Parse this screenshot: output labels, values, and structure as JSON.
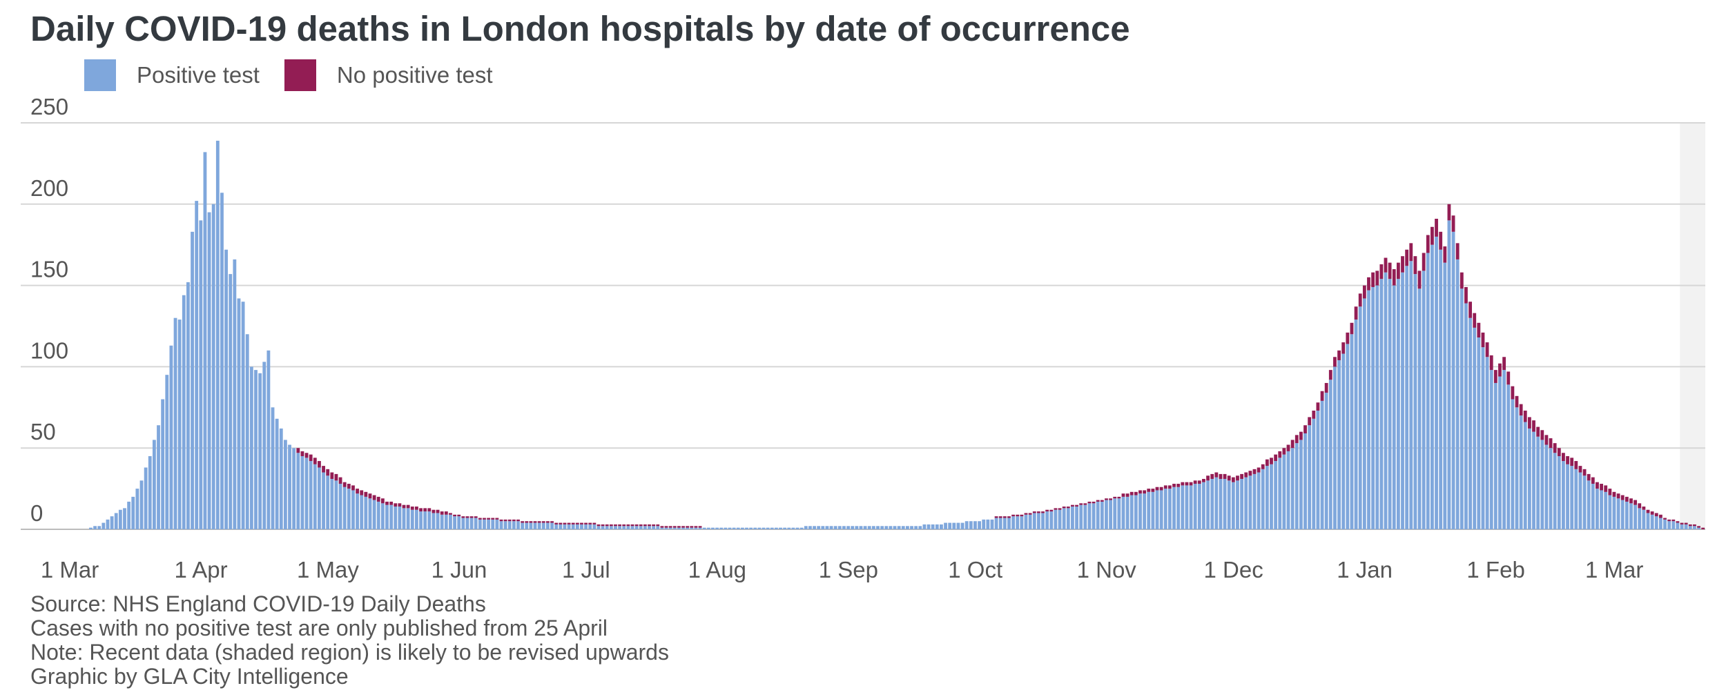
{
  "title": "Daily COVID-19 deaths in London hospitals by date of occurrence",
  "legend": {
    "positive": {
      "label": "Positive test",
      "color": "#7fa7dc"
    },
    "nopositive": {
      "label": "No positive test",
      "color": "#931d54"
    }
  },
  "notes": [
    "Source: NHS England COVID-19 Daily Deaths",
    "Cases with no positive test are only published from 25 April",
    "Note: Recent data (shaded region) is likely to be revised upwards",
    "Graphic by GLA City Intelligence"
  ],
  "chart_data": {
    "type": "bar",
    "stacked": true,
    "title": "Daily COVID-19 deaths in London hospitals by date of occurrence",
    "xlabel": "",
    "ylabel": "",
    "ylim": [
      0,
      250
    ],
    "yticks": [
      0,
      50,
      100,
      150,
      200,
      250
    ],
    "grid": true,
    "legend_position": "top-left",
    "shaded_region": "recent data",
    "xticks": [
      {
        "label": "1 Mar",
        "day": 1
      },
      {
        "label": "1 Apr",
        "day": 32
      },
      {
        "label": "1 May",
        "day": 62
      },
      {
        "label": "1 Jun",
        "day": 93
      },
      {
        "label": "1 Jul",
        "day": 123
      },
      {
        "label": "1 Aug",
        "day": 154
      },
      {
        "label": "1 Sep",
        "day": 185
      },
      {
        "label": "1 Oct",
        "day": 215
      },
      {
        "label": "1 Nov",
        "day": 246
      },
      {
        "label": "1 Dec",
        "day": 276
      },
      {
        "label": "1 Jan",
        "day": 307
      },
      {
        "label": "1 Feb",
        "day": 338
      },
      {
        "label": "1 Mar",
        "day": 366
      }
    ],
    "anchors": {
      "positive": [
        [
          1,
          0
        ],
        [
          5,
          0
        ],
        [
          6,
          1
        ],
        [
          8,
          2
        ],
        [
          10,
          6
        ],
        [
          12,
          10
        ],
        [
          14,
          13
        ],
        [
          16,
          20
        ],
        [
          18,
          30
        ],
        [
          20,
          45
        ],
        [
          22,
          64
        ],
        [
          24,
          95
        ],
        [
          25,
          113
        ],
        [
          26,
          130
        ],
        [
          27,
          129
        ],
        [
          28,
          144
        ],
        [
          29,
          152
        ],
        [
          30,
          183
        ],
        [
          31,
          202
        ],
        [
          32,
          190
        ],
        [
          33,
          232
        ],
        [
          34,
          195
        ],
        [
          35,
          200
        ],
        [
          36,
          239
        ],
        [
          37,
          207
        ],
        [
          38,
          172
        ],
        [
          39,
          157
        ],
        [
          40,
          166
        ],
        [
          41,
          142
        ],
        [
          42,
          140
        ],
        [
          44,
          100
        ],
        [
          46,
          96
        ],
        [
          48,
          110
        ],
        [
          49,
          75
        ],
        [
          50,
          68
        ],
        [
          52,
          55
        ],
        [
          55,
          47
        ],
        [
          58,
          42
        ],
        [
          62,
          33
        ],
        [
          66,
          26
        ],
        [
          70,
          21
        ],
        [
          75,
          16
        ],
        [
          80,
          13
        ],
        [
          85,
          11
        ],
        [
          90,
          9
        ],
        [
          95,
          7
        ],
        [
          100,
          6
        ],
        [
          110,
          4
        ],
        [
          120,
          3
        ],
        [
          130,
          2
        ],
        [
          150,
          1
        ],
        [
          200,
          2
        ],
        [
          215,
          5
        ],
        [
          225,
          8
        ],
        [
          235,
          12
        ],
        [
          245,
          17
        ],
        [
          255,
          22
        ],
        [
          262,
          26
        ],
        [
          268,
          28
        ],
        [
          272,
          32
        ],
        [
          276,
          29
        ],
        [
          282,
          35
        ],
        [
          286,
          42
        ],
        [
          289,
          48
        ],
        [
          292,
          55
        ],
        [
          295,
          68
        ],
        [
          298,
          84
        ],
        [
          300,
          100
        ],
        [
          302,
          108
        ],
        [
          304,
          120
        ],
        [
          306,
          137
        ],
        [
          308,
          147
        ],
        [
          310,
          150
        ],
        [
          312,
          158
        ],
        [
          314,
          150
        ],
        [
          316,
          158
        ],
        [
          318,
          165
        ],
        [
          320,
          148
        ],
        [
          322,
          170
        ],
        [
          324,
          180
        ],
        [
          326,
          164
        ],
        [
          327,
          190
        ],
        [
          328,
          183
        ],
        [
          330,
          148
        ],
        [
          332,
          130
        ],
        [
          334,
          118
        ],
        [
          336,
          106
        ],
        [
          338,
          90
        ],
        [
          340,
          98
        ],
        [
          342,
          80
        ],
        [
          344,
          70
        ],
        [
          346,
          62
        ],
        [
          350,
          52
        ],
        [
          354,
          42
        ],
        [
          358,
          35
        ],
        [
          362,
          25
        ],
        [
          366,
          20
        ],
        [
          370,
          16
        ],
        [
          374,
          10
        ],
        [
          378,
          6
        ],
        [
          382,
          3
        ],
        [
          386,
          1
        ],
        [
          387,
          0
        ]
      ],
      "nopositive": [
        [
          1,
          0
        ],
        [
          54,
          0
        ],
        [
          55,
          3
        ],
        [
          60,
          4
        ],
        [
          80,
          2
        ],
        [
          100,
          1
        ],
        [
          200,
          0
        ],
        [
          240,
          1
        ],
        [
          260,
          2
        ],
        [
          280,
          3
        ],
        [
          300,
          6
        ],
        [
          310,
          9
        ],
        [
          320,
          11
        ],
        [
          330,
          10
        ],
        [
          340,
          8
        ],
        [
          350,
          6
        ],
        [
          360,
          4
        ],
        [
          370,
          3
        ],
        [
          380,
          1
        ],
        [
          387,
          1
        ]
      ]
    }
  }
}
